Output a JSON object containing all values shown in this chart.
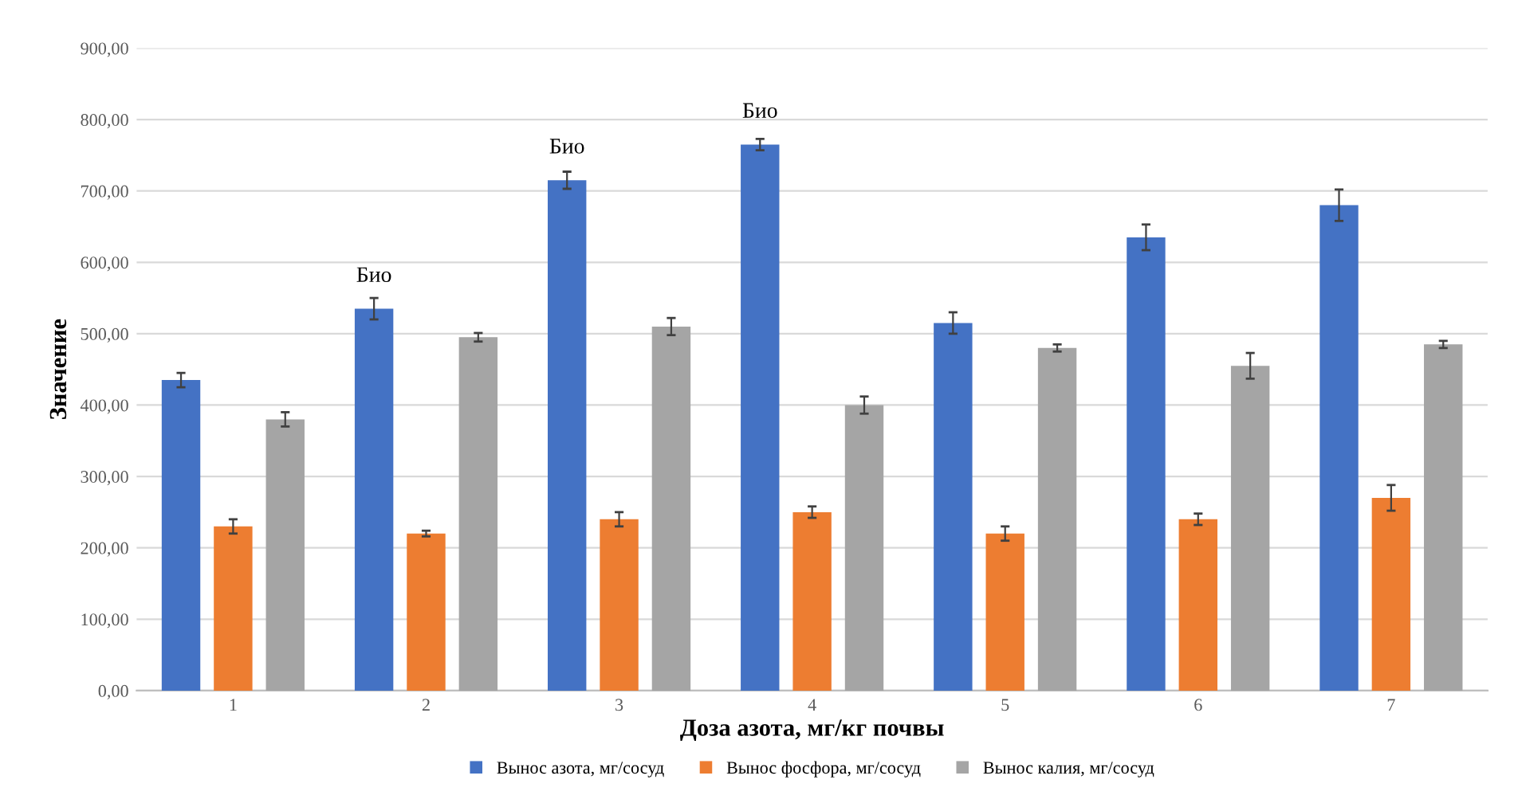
{
  "chart_data": {
    "type": "bar",
    "xlabel": "Доза азота, мг/кг почвы",
    "ylabel": "Значение",
    "categories": [
      "1",
      "2",
      "3",
      "4",
      "5",
      "6",
      "7"
    ],
    "series": [
      {
        "name": "Вынос азота, мг/сосуд",
        "color": "#4472c4",
        "values": [
          435,
          535,
          715,
          765,
          515,
          635,
          680
        ],
        "errors": [
          10,
          15,
          12,
          8,
          15,
          18,
          22
        ],
        "value_labels": [
          null,
          "Био",
          "Био",
          "Био",
          null,
          null,
          null
        ]
      },
      {
        "name": "Вынос фосфора, мг/сосуд",
        "color": "#ed7d31",
        "values": [
          230,
          220,
          240,
          250,
          220,
          240,
          270
        ],
        "errors": [
          10,
          4,
          10,
          8,
          10,
          8,
          18
        ]
      },
      {
        "name": "Вынос калия, мг/сосуд",
        "color": "#a5a5a5",
        "values": [
          380,
          495,
          510,
          400,
          480,
          455,
          485
        ],
        "errors": [
          10,
          6,
          12,
          12,
          5,
          18,
          5
        ]
      }
    ],
    "ylim": [
      0,
      900
    ],
    "yticks": [
      {
        "value": 0,
        "label": "0,00"
      },
      {
        "value": 100,
        "label": "100,00"
      },
      {
        "value": 200,
        "label": "200,00"
      },
      {
        "value": 300,
        "label": "300,00"
      },
      {
        "value": 400,
        "label": "400,00"
      },
      {
        "value": 500,
        "label": "500,00"
      },
      {
        "value": 600,
        "label": "600,00"
      },
      {
        "value": 700,
        "label": "700,00"
      },
      {
        "value": 800,
        "label": "800,00"
      },
      {
        "value": 900,
        "label": "900,00"
      }
    ],
    "grid": "y",
    "legend": "bottom"
  }
}
